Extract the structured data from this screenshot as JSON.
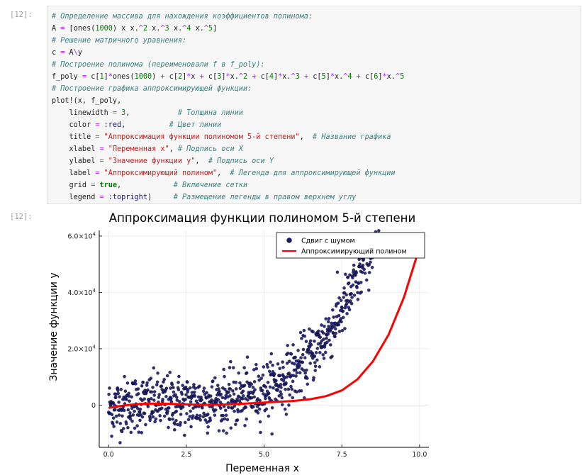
{
  "cell": {
    "input_prompt": "[12]:",
    "output_prompt": "[12]:",
    "code_lines": [
      [
        {
          "t": "# Определение массива для нахождения коэффициентов полинома:",
          "c": "com"
        }
      ],
      [
        {
          "t": "A ",
          "c": ""
        },
        {
          "t": "=",
          "c": "op"
        },
        {
          "t": " [ones(",
          "c": ""
        },
        {
          "t": "1000",
          "c": "num"
        },
        {
          "t": ") x x.",
          "c": ""
        },
        {
          "t": "^",
          "c": "op"
        },
        {
          "t": "2",
          "c": "num"
        },
        {
          "t": " x.",
          "c": ""
        },
        {
          "t": "^",
          "c": "op"
        },
        {
          "t": "3",
          "c": "num"
        },
        {
          "t": " x.",
          "c": ""
        },
        {
          "t": "^",
          "c": "op"
        },
        {
          "t": "4",
          "c": "num"
        },
        {
          "t": " x.",
          "c": ""
        },
        {
          "t": "^",
          "c": "op"
        },
        {
          "t": "5",
          "c": "num"
        },
        {
          "t": "]",
          "c": ""
        }
      ],
      [
        {
          "t": "# Решение матричного уравнения:",
          "c": "com"
        }
      ],
      [
        {
          "t": "c ",
          "c": ""
        },
        {
          "t": "=",
          "c": "op"
        },
        {
          "t": " A",
          "c": ""
        },
        {
          "t": "\\",
          "c": "op"
        },
        {
          "t": "y",
          "c": ""
        }
      ],
      [
        {
          "t": "# Построение полинома (переименовали f в f_poly):",
          "c": "com"
        }
      ],
      [
        {
          "t": "f_poly ",
          "c": ""
        },
        {
          "t": "=",
          "c": "op"
        },
        {
          "t": " c[",
          "c": ""
        },
        {
          "t": "1",
          "c": "num"
        },
        {
          "t": "]",
          "c": ""
        },
        {
          "t": "*",
          "c": "op"
        },
        {
          "t": "ones(",
          "c": ""
        },
        {
          "t": "1000",
          "c": "num"
        },
        {
          "t": ") ",
          "c": ""
        },
        {
          "t": "+",
          "c": "op"
        },
        {
          "t": " c[",
          "c": ""
        },
        {
          "t": "2",
          "c": "num"
        },
        {
          "t": "]",
          "c": ""
        },
        {
          "t": "*",
          "c": "op"
        },
        {
          "t": "x ",
          "c": ""
        },
        {
          "t": "+",
          "c": "op"
        },
        {
          "t": " c[",
          "c": ""
        },
        {
          "t": "3",
          "c": "num"
        },
        {
          "t": "]",
          "c": ""
        },
        {
          "t": "*",
          "c": "op"
        },
        {
          "t": "x.",
          "c": ""
        },
        {
          "t": "^",
          "c": "op"
        },
        {
          "t": "2",
          "c": "num"
        },
        {
          "t": " ",
          "c": ""
        },
        {
          "t": "+",
          "c": "op"
        },
        {
          "t": " c[",
          "c": ""
        },
        {
          "t": "4",
          "c": "num"
        },
        {
          "t": "]",
          "c": ""
        },
        {
          "t": "*",
          "c": "op"
        },
        {
          "t": "x.",
          "c": ""
        },
        {
          "t": "^",
          "c": "op"
        },
        {
          "t": "3",
          "c": "num"
        },
        {
          "t": " ",
          "c": ""
        },
        {
          "t": "+",
          "c": "op"
        },
        {
          "t": " c[",
          "c": ""
        },
        {
          "t": "5",
          "c": "num"
        },
        {
          "t": "]",
          "c": ""
        },
        {
          "t": "*",
          "c": "op"
        },
        {
          "t": "x.",
          "c": ""
        },
        {
          "t": "^",
          "c": "op"
        },
        {
          "t": "4",
          "c": "num"
        },
        {
          "t": " ",
          "c": ""
        },
        {
          "t": "+",
          "c": "op"
        },
        {
          "t": " c[",
          "c": ""
        },
        {
          "t": "6",
          "c": "num"
        },
        {
          "t": "]",
          "c": ""
        },
        {
          "t": "*",
          "c": "op"
        },
        {
          "t": "x.",
          "c": ""
        },
        {
          "t": "^",
          "c": "op"
        },
        {
          "t": "5",
          "c": "num"
        }
      ],
      [
        {
          "t": "# Построение графика аппроксимирующей функции:",
          "c": "com"
        }
      ],
      [
        {
          "t": "plot!(x, f_poly,",
          "c": ""
        }
      ],
      [
        {
          "t": "    linewidth ",
          "c": ""
        },
        {
          "t": "=",
          "c": "op"
        },
        {
          "t": " ",
          "c": ""
        },
        {
          "t": "3",
          "c": "num"
        },
        {
          "t": ",           ",
          "c": ""
        },
        {
          "t": "# Толщина линии",
          "c": "com"
        }
      ],
      [
        {
          "t": "    color ",
          "c": ""
        },
        {
          "t": "=",
          "c": "op"
        },
        {
          "t": " ",
          "c": ""
        },
        {
          "t": ":red",
          "c": "sym"
        },
        {
          "t": ",          ",
          "c": ""
        },
        {
          "t": "# Цвет линии",
          "c": "com"
        }
      ],
      [
        {
          "t": "    title ",
          "c": ""
        },
        {
          "t": "=",
          "c": "op"
        },
        {
          "t": " ",
          "c": ""
        },
        {
          "t": "\"Аппроксимация функции полиномом 5-й степени\"",
          "c": "str"
        },
        {
          "t": ",  ",
          "c": ""
        },
        {
          "t": "# Название графика",
          "c": "com"
        }
      ],
      [
        {
          "t": "    xlabel ",
          "c": ""
        },
        {
          "t": "=",
          "c": "op"
        },
        {
          "t": " ",
          "c": ""
        },
        {
          "t": "\"Переменная x\"",
          "c": "str"
        },
        {
          "t": ", ",
          "c": ""
        },
        {
          "t": "# Подпись оси X",
          "c": "com"
        }
      ],
      [
        {
          "t": "    ylabel ",
          "c": ""
        },
        {
          "t": "=",
          "c": "op"
        },
        {
          "t": " ",
          "c": ""
        },
        {
          "t": "\"Значение функции y\"",
          "c": "str"
        },
        {
          "t": ",  ",
          "c": ""
        },
        {
          "t": "# Подпись оси Y",
          "c": "com"
        }
      ],
      [
        {
          "t": "    label ",
          "c": ""
        },
        {
          "t": "=",
          "c": "op"
        },
        {
          "t": " ",
          "c": ""
        },
        {
          "t": "\"Аппроксимирующий полином\"",
          "c": "str"
        },
        {
          "t": ",  ",
          "c": ""
        },
        {
          "t": "# Легенда для аппроксимирующей функции",
          "c": "com"
        }
      ],
      [
        {
          "t": "    grid ",
          "c": ""
        },
        {
          "t": "=",
          "c": "op"
        },
        {
          "t": " ",
          "c": ""
        },
        {
          "t": "true",
          "c": "kw"
        },
        {
          "t": ",            ",
          "c": ""
        },
        {
          "t": "# Включение сетки",
          "c": "com"
        }
      ],
      [
        {
          "t": "    legend ",
          "c": ""
        },
        {
          "t": "=",
          "c": "op"
        },
        {
          "t": " ",
          "c": ""
        },
        {
          "t": ":topright",
          "c": "sym"
        },
        {
          "t": ")     ",
          "c": ""
        },
        {
          "t": "# Размещение легенды в правом верхнем углу",
          "c": "com"
        }
      ]
    ]
  },
  "chart_data": {
    "type": "scatter",
    "title": "Аппроксимация функции полиномом 5-й степени",
    "xlabel": "Переменная x",
    "ylabel": "Значение функции y",
    "xlim": [
      -0.3,
      10.3
    ],
    "ylim": [
      -15000,
      62000
    ],
    "x_ticks": [
      0,
      2.5,
      5,
      7.5,
      10
    ],
    "x_tick_labels": [
      "0.0",
      "2.5",
      "5.0",
      "7.5",
      "10.0"
    ],
    "y_ticks": [
      0,
      20000,
      40000,
      60000
    ],
    "y_tick_labels": [
      {
        "mant": "0",
        "exp": ""
      },
      {
        "mant": "2.0×10",
        "exp": "4"
      },
      {
        "mant": "4.0×10",
        "exp": "4"
      },
      {
        "mant": "6.0×10",
        "exp": "4"
      }
    ],
    "grid": true,
    "legend_position": "top-right",
    "series": [
      {
        "name": "Сдвиг с шумом",
        "kind": "scatter",
        "color": "#1a1a6e",
        "n_points": 1000,
        "x_range": [
          0,
          10
        ],
        "model_coeffs": [
          -1000,
          2500,
          -1200,
          200,
          -5,
          0.62
        ],
        "noise_sd": 5000
      },
      {
        "name": "Аппроксимирующий полином",
        "kind": "line",
        "color": "#ff0000",
        "linewidth": 3,
        "x": [
          0,
          0.5,
          1,
          1.5,
          2,
          2.5,
          3,
          3.5,
          4,
          4.5,
          5,
          5.5,
          6,
          6.5,
          7,
          7.5,
          8,
          8.5,
          9,
          9.5,
          10
        ],
        "y": [
          -1000,
          -100,
          400,
          550,
          450,
          250,
          100,
          100,
          300,
          600,
          900,
          1200,
          1500,
          2100,
          3200,
          5200,
          9100,
          15500,
          24900,
          38300,
          56000
        ]
      }
    ]
  }
}
